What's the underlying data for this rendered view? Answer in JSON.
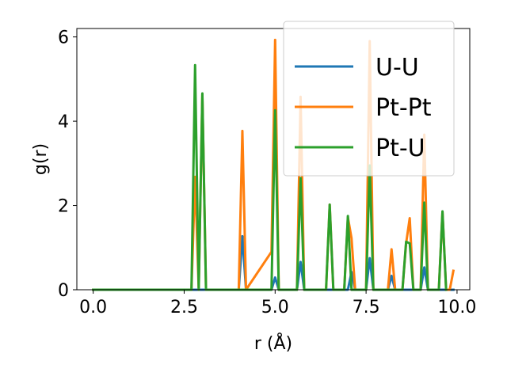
{
  "chart_data": {
    "type": "line",
    "xlabel": "r (Å)",
    "ylabel": "g(r)",
    "xlim": [
      -0.45,
      10.35
    ],
    "ylim": [
      0,
      6.2
    ],
    "xticks": [
      "0.0",
      "2.5",
      "5.0",
      "7.5",
      "10.0"
    ],
    "yticks": [
      "0",
      "2",
      "4",
      "6"
    ],
    "grid": false,
    "legend_position": "top-right",
    "series": [
      {
        "name": "U-U",
        "color": "#1f77b4",
        "x": [
          0,
          4.0,
          4.1,
          4.2,
          4.9,
          5.0,
          5.1,
          5.6,
          5.7,
          5.8,
          7.0,
          7.1,
          7.2,
          7.5,
          7.6,
          7.7,
          8.1,
          8.2,
          8.3,
          9.0,
          9.1,
          9.2,
          9.9
        ],
        "y": [
          0,
          0,
          1.27,
          0,
          0,
          0.29,
          0,
          0,
          0.66,
          0,
          0,
          0.42,
          0,
          0,
          0.75,
          0,
          0,
          0.33,
          0,
          0,
          0.53,
          0,
          0
        ]
      },
      {
        "name": "Pt-Pt",
        "color": "#ff7f0e",
        "x": [
          0,
          2.7,
          2.8,
          2.9,
          3.0,
          3.1,
          4.0,
          4.1,
          4.2,
          4.9,
          5.0,
          5.1,
          5.6,
          5.7,
          5.8,
          6.4,
          6.5,
          6.6,
          6.9,
          7.0,
          7.1,
          7.2,
          7.5,
          7.6,
          7.7,
          8.1,
          8.2,
          8.3,
          8.5,
          8.6,
          8.7,
          8.8,
          9.0,
          9.1,
          9.2,
          9.5,
          9.6,
          9.7,
          9.8,
          9.9
        ],
        "y": [
          0,
          0,
          2.68,
          0,
          4.64,
          0,
          0,
          3.77,
          0,
          0.9,
          5.93,
          0,
          0,
          4.58,
          0,
          0,
          2.02,
          0,
          0,
          1.72,
          1.22,
          0,
          0,
          5.9,
          0,
          0,
          0.96,
          0,
          0,
          1.1,
          1.7,
          0,
          0,
          3.68,
          0,
          0,
          1.85,
          0,
          0,
          0.45
        ]
      },
      {
        "name": "Pt-U",
        "color": "#2ca02c",
        "x": [
          0,
          2.7,
          2.8,
          2.9,
          3.0,
          3.1,
          4.9,
          5.0,
          5.1,
          5.6,
          5.7,
          5.8,
          6.4,
          6.5,
          6.6,
          6.9,
          7.0,
          7.1,
          7.5,
          7.6,
          7.7,
          8.5,
          8.6,
          8.7,
          8.8,
          9.0,
          9.1,
          9.2,
          9.5,
          9.6,
          9.7
        ],
        "y": [
          0,
          0,
          5.33,
          0,
          4.66,
          0,
          0,
          4.26,
          0,
          0,
          2.65,
          0,
          0,
          2.02,
          0,
          0,
          1.75,
          0,
          0,
          2.95,
          0,
          0,
          1.14,
          1.1,
          0,
          0,
          2.07,
          0,
          0,
          1.86,
          0
        ]
      }
    ]
  }
}
